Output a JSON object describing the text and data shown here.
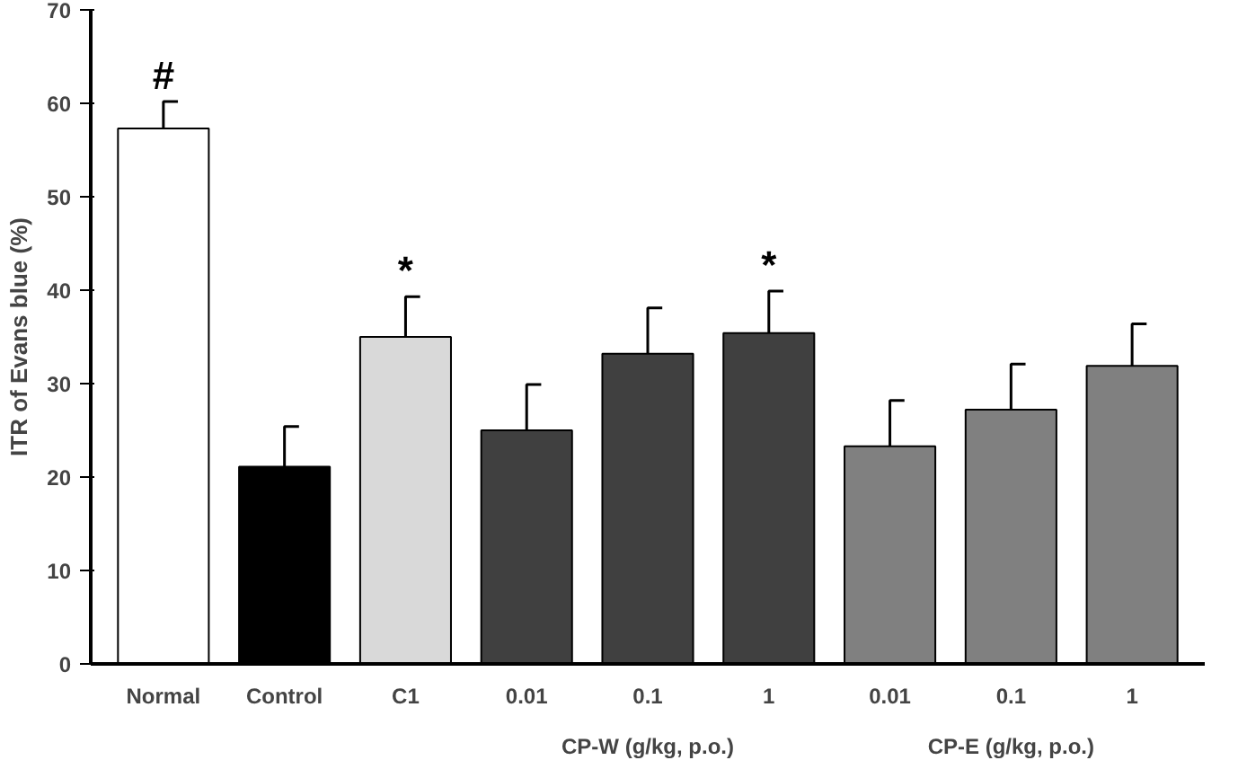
{
  "chart_data": {
    "type": "bar",
    "ylabel": "ITR of Evans blue (%)",
    "categories": [
      "Normal",
      "Control",
      "C1",
      "0.01",
      "0.1",
      "1",
      "0.01",
      "0.1",
      "1"
    ],
    "values": [
      57.3,
      21.1,
      35.0,
      25.0,
      33.2,
      35.4,
      23.3,
      27.2,
      31.9
    ],
    "colors": [
      "#ffffff",
      "#000000",
      "#d9d9d9",
      "#404040",
      "#404040",
      "#404040",
      "#808080",
      "#808080",
      "#808080"
    ],
    "errors": [
      [
        57.3,
        60.2
      ],
      [
        21.1,
        25.4
      ],
      [
        35.0,
        39.3
      ],
      [
        25.0,
        29.9
      ],
      [
        33.2,
        38.1
      ],
      [
        35.4,
        39.9
      ],
      [
        23.3,
        28.2
      ],
      [
        27.2,
        32.1
      ],
      [
        31.9,
        36.4
      ]
    ],
    "ylim": [
      0,
      70
    ],
    "yticks": [
      0,
      10,
      20,
      30,
      40,
      50,
      60,
      70
    ],
    "grid": false,
    "annotations": [
      {
        "text": "#",
        "x": "Normal",
        "y": 60.2
      },
      {
        "text": "*",
        "x": "C1",
        "y": 39.3
      },
      {
        "text": "*",
        "x": "1",
        "y": 39.9
      },
      "CP-W (g/kg, p.o.)",
      "CP-E (g/kg, p.o.)"
    ]
  }
}
